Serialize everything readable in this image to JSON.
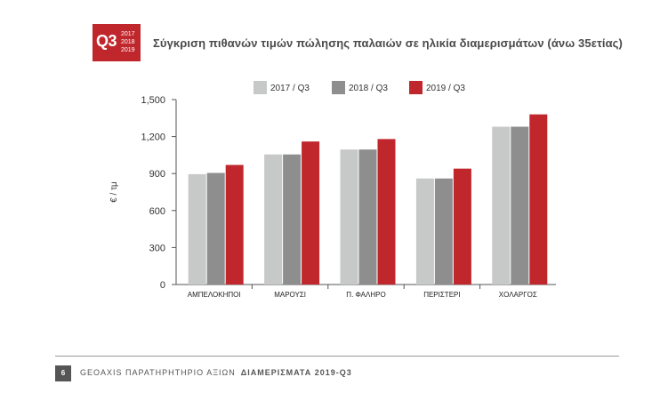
{
  "badge": {
    "quarter": "Q3",
    "years": [
      "2017",
      "2018",
      "2019"
    ]
  },
  "title": "Σύγκριση πιθανών τιμών πώλησης παλαιών σε ηλικία διαμερισμάτων (άνω 35ετίας)",
  "chart_data": {
    "type": "bar",
    "title": "Σύγκριση πιθανών τιμών πώλησης παλαιών σε ηλικία διαμερισμάτων (άνω 35ετίας)",
    "xlabel": "",
    "ylabel": "€ / τμ",
    "ylim": [
      0,
      1500
    ],
    "yticks": [
      0,
      300,
      600,
      900,
      1200,
      1500
    ],
    "ytick_labels": [
      "0",
      "300",
      "600",
      "900",
      "1,200",
      "1,500"
    ],
    "grid": false,
    "legend": "top-center",
    "categories": [
      "ΑΜΠΕΛΟΚΗΠΟΙ",
      "ΜΑΡΟΥΣΙ",
      "Π. ΦΑΛΗΡΟ",
      "ΠΕΡΙΣΤΕΡΙ",
      "ΧΟΛΑΡΓΟΣ"
    ],
    "series": [
      {
        "name": "2017 / Q3",
        "color": "#c6c9c8",
        "values": [
          895,
          1055,
          1095,
          860,
          1280
        ]
      },
      {
        "name": "2018 / Q3",
        "color": "#8e8e8e",
        "values": [
          905,
          1055,
          1095,
          860,
          1280
        ]
      },
      {
        "name": "2019 / Q3",
        "color": "#c0272d",
        "values": [
          970,
          1160,
          1180,
          940,
          1380
        ]
      }
    ]
  },
  "footer": {
    "page": "6",
    "text": "GEOAXIS ΠΑΡΑΤΗΡΗΤΗΡΙΟ ΑΞΙΩΝ",
    "bold": "ΔΙΑΜΕΡΙΣΜΑΤΑ 2019-Q3"
  }
}
